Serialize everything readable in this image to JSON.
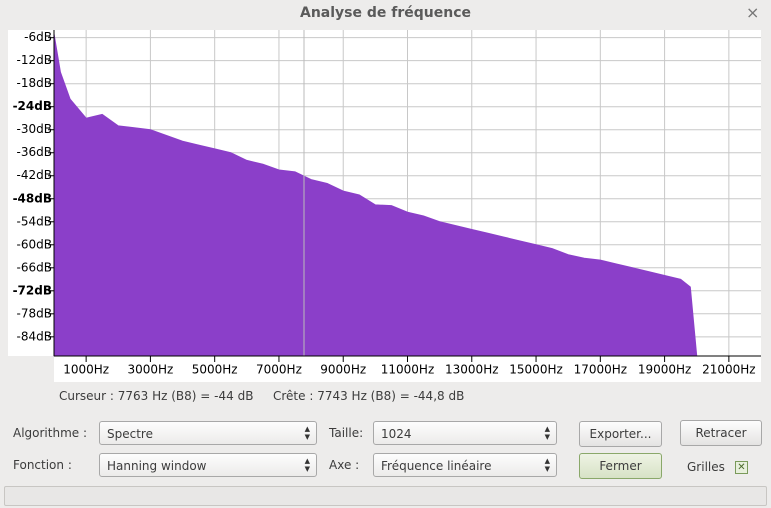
{
  "window": {
    "title": "Analyse de fréquence",
    "close": "×"
  },
  "chart_data": {
    "type": "area",
    "x": [
      0,
      200,
      500,
      1000,
      1500,
      2000,
      2500,
      3000,
      3500,
      4000,
      4500,
      5000,
      5500,
      6000,
      6500,
      7000,
      7500,
      8000,
      8500,
      9000,
      9500,
      10000,
      10500,
      11000,
      11500,
      12000,
      12500,
      13000,
      13500,
      14000,
      14500,
      15000,
      15500,
      16000,
      16500,
      17000,
      17500,
      18000,
      18500,
      19000,
      19500,
      19800,
      20000
    ],
    "series": [
      {
        "color": "#8b3fc9",
        "values": [
          -5,
          -15,
          -22,
          -27,
          -26,
          -29,
          -29.5,
          -30,
          -31.5,
          -33,
          -34,
          -35,
          -36,
          -38,
          -39,
          -40.5,
          -41,
          -43,
          -44,
          -46,
          -47,
          -49.6,
          -49.8,
          -51.5,
          -52.5,
          -54,
          -55,
          -56,
          -57,
          -58,
          -59,
          -60,
          -61,
          -62.6,
          -63.5,
          -64,
          -65,
          -66,
          -67,
          -68,
          -69,
          -71,
          -89
        ]
      }
    ],
    "xlim": [
      0,
      22000
    ],
    "xticks": [
      {
        "value": 1000,
        "label": "1000Hz"
      },
      {
        "value": 3000,
        "label": "3000Hz"
      },
      {
        "value": 5000,
        "label": "5000Hz"
      },
      {
        "value": 7000,
        "label": "7000Hz"
      },
      {
        "value": 9000,
        "label": "9000Hz"
      },
      {
        "value": 11000,
        "label": "11000Hz"
      },
      {
        "value": 13000,
        "label": "13000Hz"
      },
      {
        "value": 15000,
        "label": "15000Hz"
      },
      {
        "value": 17000,
        "label": "17000Hz"
      },
      {
        "value": 19000,
        "label": "19000Hz"
      },
      {
        "value": 21000,
        "label": "21000Hz"
      }
    ],
    "ylim": [
      -89,
      -4
    ],
    "yticks": [
      {
        "value": -6,
        "label": "-6dB"
      },
      {
        "value": -12,
        "label": "-12dB"
      },
      {
        "value": -18,
        "label": "-18dB"
      },
      {
        "value": -24,
        "label": "-24dB"
      },
      {
        "value": -30,
        "label": "-30dB"
      },
      {
        "value": -36,
        "label": "-36dB"
      },
      {
        "value": -42,
        "label": "-42dB"
      },
      {
        "value": -48,
        "label": "-48dB"
      },
      {
        "value": -54,
        "label": "-54dB"
      },
      {
        "value": -60,
        "label": "-60dB"
      },
      {
        "value": -66,
        "label": "-66dB"
      },
      {
        "value": -72,
        "label": "-72dB"
      },
      {
        "value": -78,
        "label": "-78dB"
      },
      {
        "value": -84,
        "label": "-84dB"
      }
    ],
    "grid": true
  },
  "status": {
    "cursor": "Curseur : 7763 Hz (B8) = -44 dB",
    "peak": "Crête : 7743 Hz (B8) = -44,8 dB"
  },
  "controls": {
    "algorithm_label": "Algorithme :",
    "algorithm": "Spectre",
    "size_label": "Taille:",
    "size": "1024",
    "function_label": "Fonction :",
    "function": "Hanning window",
    "axis_label": "Axe :",
    "axis": "Fréquence linéaire",
    "export": "Exporter...",
    "replot": "Retracer",
    "close": "Fermer",
    "grids_label": "Grilles"
  }
}
